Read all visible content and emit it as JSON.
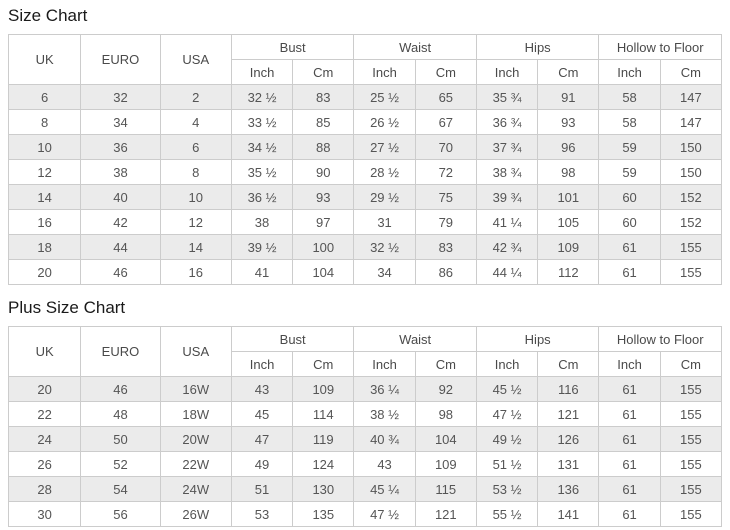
{
  "titles": {
    "size_chart": "Size Chart",
    "plus_size_chart": "Plus Size Chart"
  },
  "headers": {
    "uk": "UK",
    "euro": "EURO",
    "usa": "USA",
    "bust": "Bust",
    "waist": "Waist",
    "hips": "Hips",
    "hollow_to_floor": "Hollow to Floor",
    "inch": "Inch",
    "cm": "Cm"
  },
  "size_chart": {
    "rows": [
      [
        "6",
        "32",
        "2",
        "32 ½",
        "83",
        "25 ½",
        "65",
        "35 ¾",
        "91",
        "58",
        "147"
      ],
      [
        "8",
        "34",
        "4",
        "33 ½",
        "85",
        "26 ½",
        "67",
        "36 ¾",
        "93",
        "58",
        "147"
      ],
      [
        "10",
        "36",
        "6",
        "34 ½",
        "88",
        "27 ½",
        "70",
        "37 ¾",
        "96",
        "59",
        "150"
      ],
      [
        "12",
        "38",
        "8",
        "35 ½",
        "90",
        "28 ½",
        "72",
        "38 ¾",
        "98",
        "59",
        "150"
      ],
      [
        "14",
        "40",
        "10",
        "36 ½",
        "93",
        "29 ½",
        "75",
        "39 ¾",
        "101",
        "60",
        "152"
      ],
      [
        "16",
        "42",
        "12",
        "38",
        "97",
        "31",
        "79",
        "41 ¼",
        "105",
        "60",
        "152"
      ],
      [
        "18",
        "44",
        "14",
        "39 ½",
        "100",
        "32 ½",
        "83",
        "42 ¾",
        "109",
        "61",
        "155"
      ],
      [
        "20",
        "46",
        "16",
        "41",
        "104",
        "34",
        "86",
        "44 ¼",
        "112",
        "61",
        "155"
      ]
    ]
  },
  "plus_size_chart": {
    "rows": [
      [
        "20",
        "46",
        "16W",
        "43",
        "109",
        "36 ¼",
        "92",
        "45 ½",
        "116",
        "61",
        "155"
      ],
      [
        "22",
        "48",
        "18W",
        "45",
        "114",
        "38 ½",
        "98",
        "47 ½",
        "121",
        "61",
        "155"
      ],
      [
        "24",
        "50",
        "20W",
        "47",
        "119",
        "40 ¾",
        "104",
        "49 ½",
        "126",
        "61",
        "155"
      ],
      [
        "26",
        "52",
        "22W",
        "49",
        "124",
        "43",
        "109",
        "51 ½",
        "131",
        "61",
        "155"
      ],
      [
        "28",
        "54",
        "24W",
        "51",
        "130",
        "45 ¼",
        "115",
        "53 ½",
        "136",
        "61",
        "155"
      ],
      [
        "30",
        "56",
        "26W",
        "53",
        "135",
        "47 ½",
        "121",
        "55 ½",
        "141",
        "61",
        "155"
      ]
    ]
  },
  "colors": {
    "border": "#cccccc",
    "shaded_row": "#ebebeb",
    "body_text": "#555555",
    "title_text": "#1a1a1a",
    "background": "#ffffff"
  }
}
